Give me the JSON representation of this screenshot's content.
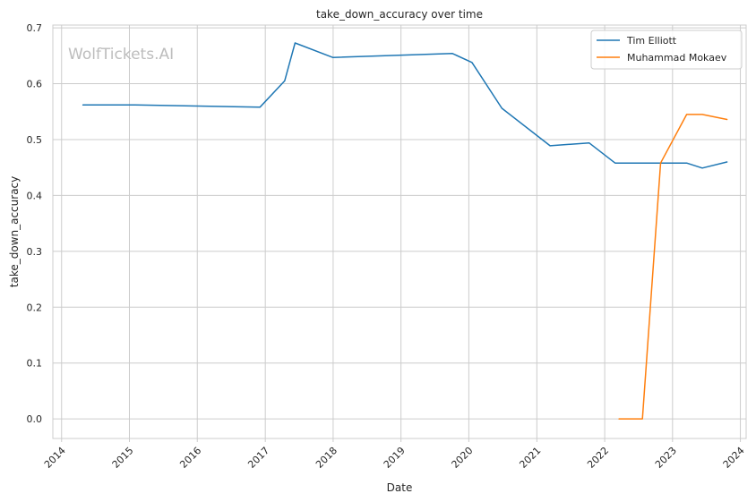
{
  "chart_data": {
    "type": "line",
    "title": "take_down_accuracy over time",
    "xlabel": "Date",
    "ylabel": "take_down_accuracy",
    "watermark": "WolfTickets.AI",
    "x_type": "date",
    "xlim": [
      "2013-11-15",
      "2024-02-01"
    ],
    "ylim": [
      -0.035,
      0.705
    ],
    "x_ticks": [
      "2014",
      "2015",
      "2016",
      "2017",
      "2018",
      "2019",
      "2020",
      "2021",
      "2022",
      "2023",
      "2024"
    ],
    "y_ticks": [
      "0.0",
      "0.1",
      "0.2",
      "0.3",
      "0.4",
      "0.5",
      "0.6",
      "0.7"
    ],
    "grid": true,
    "legend_position": "top-right",
    "series": [
      {
        "name": "Tim Elliott",
        "color": "#1f77b4",
        "points": [
          {
            "x": "2014-04-26",
            "y": 0.562
          },
          {
            "x": "2015-01-31",
            "y": 0.562
          },
          {
            "x": "2016-12-03",
            "y": 0.558
          },
          {
            "x": "2017-04-15",
            "y": 0.605
          },
          {
            "x": "2017-06-10",
            "y": 0.673
          },
          {
            "x": "2017-12-30",
            "y": 0.647
          },
          {
            "x": "2019-10-05",
            "y": 0.654
          },
          {
            "x": "2020-01-18",
            "y": 0.638
          },
          {
            "x": "2020-06-27",
            "y": 0.556
          },
          {
            "x": "2021-03-13",
            "y": 0.489
          },
          {
            "x": "2021-10-09",
            "y": 0.494
          },
          {
            "x": "2022-02-26",
            "y": 0.458
          },
          {
            "x": "2023-03-18",
            "y": 0.458
          },
          {
            "x": "2023-06-10",
            "y": 0.449
          },
          {
            "x": "2023-10-21",
            "y": 0.46
          }
        ]
      },
      {
        "name": "Muhammad Mokaev",
        "color": "#ff7f0e",
        "points": [
          {
            "x": "2022-03-19",
            "y": 0.0
          },
          {
            "x": "2022-07-23",
            "y": 0.0
          },
          {
            "x": "2022-10-29",
            "y": 0.458
          },
          {
            "x": "2023-03-18",
            "y": 0.545
          },
          {
            "x": "2023-06-10",
            "y": 0.545
          },
          {
            "x": "2023-10-21",
            "y": 0.536
          }
        ]
      }
    ]
  }
}
